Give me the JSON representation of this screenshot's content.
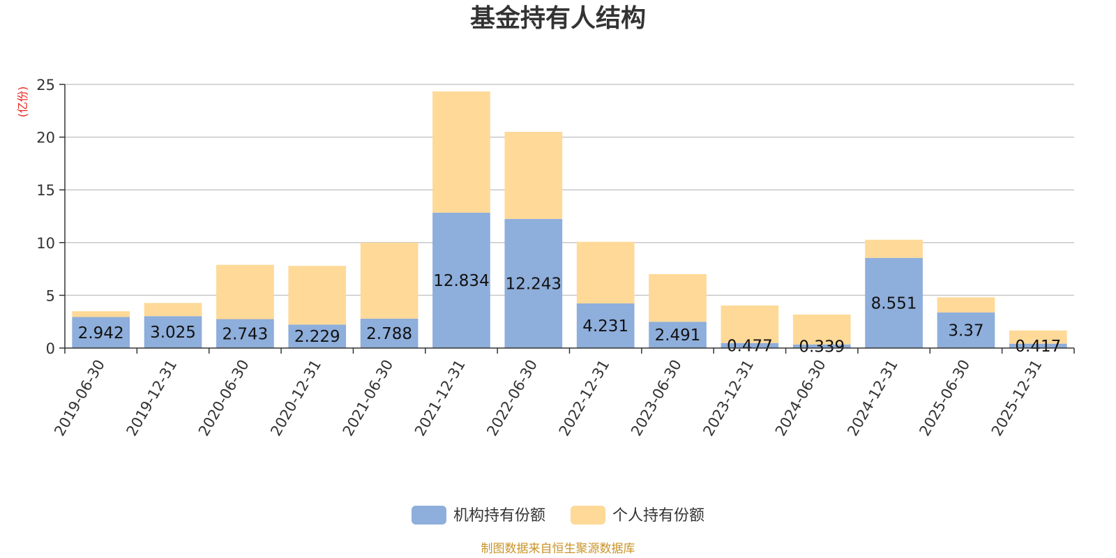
{
  "chart_data": {
    "type": "bar",
    "stacked": true,
    "title": "基金持有人结构",
    "unit_label": "(亿份)",
    "categories": [
      "2019-06-30",
      "2019-12-31",
      "2020-06-30",
      "2020-12-31",
      "2021-06-30",
      "2021-12-31",
      "2022-06-30",
      "2022-12-31",
      "2023-06-30",
      "2023-12-31",
      "2024-06-30",
      "2024-12-31",
      "2025-06-30",
      "2025-12-31"
    ],
    "series": [
      {
        "name": "机构持有份额",
        "color": "#8eaedb",
        "values": [
          2.942,
          3.025,
          2.743,
          2.229,
          2.788,
          12.834,
          12.243,
          4.231,
          2.491,
          0.477,
          0.339,
          8.551,
          3.37,
          0.417
        ],
        "labels": [
          "2.942",
          "3.025",
          "2.743",
          "2.229",
          "2.788",
          "12.834",
          "12.243",
          "4.231",
          "2.491",
          "0.477",
          "0.339",
          "8.551",
          "3.37",
          "0.417"
        ]
      },
      {
        "name": "个人持有份额",
        "color": "#fed998",
        "values": [
          0.55,
          1.25,
          5.15,
          5.56,
          7.21,
          11.5,
          8.26,
          5.84,
          4.52,
          3.56,
          2.84,
          1.72,
          1.44,
          1.25
        ]
      }
    ],
    "ylim": [
      0,
      25
    ],
    "yticks": [
      0,
      5,
      10,
      15,
      20,
      25
    ],
    "grid": true,
    "legend": "bottom-center"
  },
  "source_note": "制图数据来自恒生聚源数据库"
}
